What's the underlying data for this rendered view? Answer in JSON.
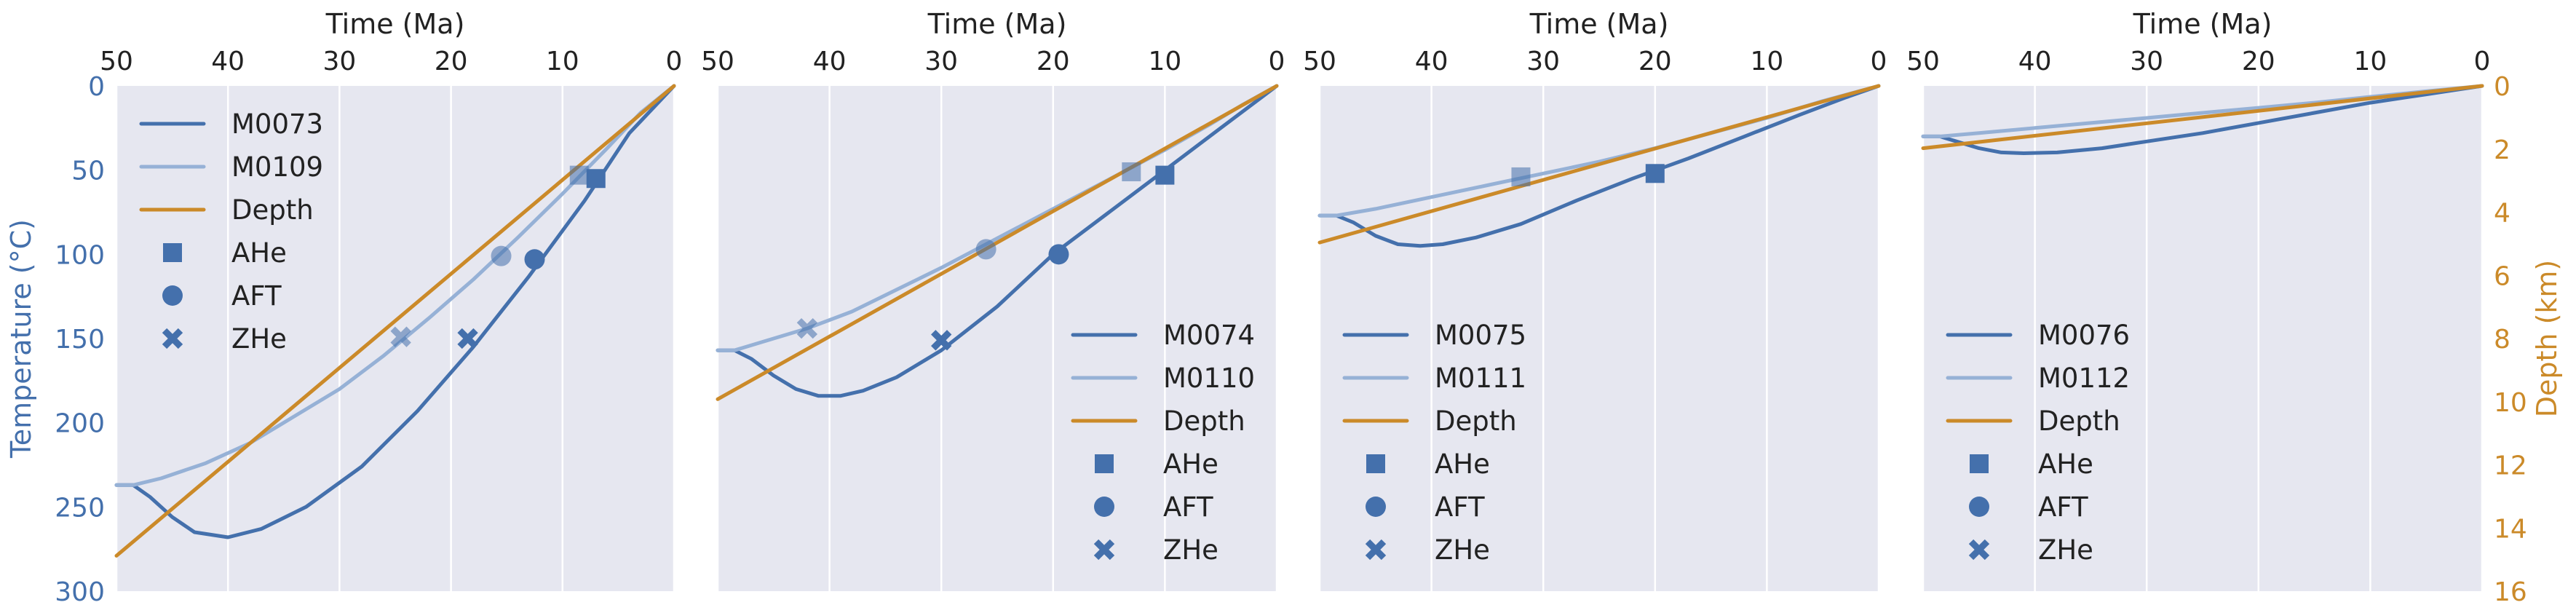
{
  "colors": {
    "axes_bg": "#e6e7f0",
    "grid": "#ffffff",
    "dark_blue": "#4470ac",
    "light_blue": "#96b1d6",
    "depth": "#cb8a29",
    "text": "#222222"
  },
  "chart_data": [
    {
      "type": "line",
      "xlabel": "Time (Ma)",
      "ylabel": "Temperature (°C)",
      "xlim": [
        50,
        0
      ],
      "ylim": [
        300,
        0
      ],
      "x_ticks": [
        50,
        40,
        30,
        20,
        10,
        0
      ],
      "y_ticks": [
        0,
        50,
        100,
        150,
        200,
        250,
        300
      ],
      "y2label": "",
      "y2_ticks": [],
      "legend_loc": "upper-left",
      "series": [
        {
          "name": "M0073",
          "style": "dark",
          "x": [
            50,
            48.5,
            47,
            45,
            43,
            40,
            37,
            33,
            28,
            23,
            18,
            13,
            8,
            4,
            0
          ],
          "y": [
            237,
            237,
            244,
            256,
            265,
            268,
            263,
            250,
            226,
            193,
            155,
            113,
            68,
            28,
            0
          ]
        },
        {
          "name": "M0109",
          "style": "light",
          "x": [
            50,
            48.5,
            46,
            42,
            38,
            34,
            30,
            26,
            22,
            18,
            14,
            10,
            6,
            3,
            0
          ],
          "y": [
            237,
            237,
            233,
            224,
            212,
            196,
            180,
            160,
            138,
            115,
            90,
            64,
            37,
            16,
            0
          ]
        },
        {
          "name": "Depth",
          "style": "depth",
          "x": [
            50,
            0
          ],
          "y": [
            279,
            0
          ]
        }
      ],
      "markers": [
        {
          "legend": "AHe",
          "shape": "square",
          "x": 7,
          "y": 55,
          "style": "dark"
        },
        {
          "legend": "AHe",
          "shape": "square",
          "x": 8.5,
          "y": 53,
          "style": "light"
        },
        {
          "legend": "AFT",
          "shape": "circle",
          "x": 12.5,
          "y": 103,
          "style": "dark"
        },
        {
          "legend": "AFT",
          "shape": "circle",
          "x": 15.5,
          "y": 101,
          "style": "light"
        },
        {
          "legend": "ZHe",
          "shape": "x",
          "x": 18.5,
          "y": 150,
          "style": "dark"
        },
        {
          "legend": "ZHe",
          "shape": "x",
          "x": 24.5,
          "y": 149,
          "style": "light"
        }
      ],
      "legend": [
        "M0073",
        "M0109",
        "Depth",
        "AHe",
        "AFT",
        "ZHe"
      ]
    },
    {
      "type": "line",
      "xlabel": "Time (Ma)",
      "ylabel": "",
      "xlim": [
        50,
        0
      ],
      "ylim": [
        300,
        0
      ],
      "x_ticks": [
        50,
        40,
        30,
        20,
        10,
        0
      ],
      "y_ticks": [],
      "y2label": "",
      "y2_ticks": [],
      "legend_loc": "lower-right",
      "series": [
        {
          "name": "M0074",
          "style": "dark",
          "x": [
            50,
            48.5,
            47,
            45,
            43,
            41,
            39,
            37,
            34,
            30,
            25,
            20,
            15,
            10,
            5,
            0
          ],
          "y": [
            157,
            157,
            162,
            172,
            180,
            184,
            184,
            181,
            173,
            157,
            131,
            100,
            75,
            50,
            25,
            0
          ]
        },
        {
          "name": "M0110",
          "style": "light",
          "x": [
            50,
            48.5,
            46,
            42,
            38,
            34,
            30,
            26,
            22,
            18,
            14,
            10,
            6,
            3,
            0
          ],
          "y": [
            157,
            157,
            152,
            144,
            134,
            121,
            108,
            94,
            80,
            66,
            52,
            38,
            23,
            11,
            0
          ]
        },
        {
          "name": "Depth",
          "style": "depth",
          "x": [
            50,
            0
          ],
          "y": [
            186,
            0
          ]
        }
      ],
      "markers": [
        {
          "legend": "AHe",
          "shape": "square",
          "x": 10,
          "y": 53,
          "style": "dark"
        },
        {
          "legend": "AHe",
          "shape": "square",
          "x": 13,
          "y": 51,
          "style": "light"
        },
        {
          "legend": "AFT",
          "shape": "circle",
          "x": 19.5,
          "y": 100,
          "style": "dark"
        },
        {
          "legend": "AFT",
          "shape": "circle",
          "x": 26,
          "y": 97,
          "style": "light"
        },
        {
          "legend": "ZHe",
          "shape": "x",
          "x": 30,
          "y": 151,
          "style": "dark"
        },
        {
          "legend": "ZHe",
          "shape": "x",
          "x": 42,
          "y": 144,
          "style": "light"
        }
      ],
      "legend": [
        "M0074",
        "M0110",
        "Depth",
        "AHe",
        "AFT",
        "ZHe"
      ]
    },
    {
      "type": "line",
      "xlabel": "Time (Ma)",
      "ylabel": "",
      "xlim": [
        50,
        0
      ],
      "ylim": [
        300,
        0
      ],
      "x_ticks": [
        50,
        40,
        30,
        20,
        10,
        0
      ],
      "y_ticks": [],
      "y2label": "",
      "y2_ticks": [],
      "legend_loc": "lower-left",
      "series": [
        {
          "name": "M0075",
          "style": "dark",
          "x": [
            50,
            48.5,
            47,
            45,
            43,
            41,
            39,
            36,
            32,
            27,
            22,
            17,
            12,
            7,
            3,
            0
          ],
          "y": [
            77,
            77,
            81,
            89,
            94,
            95,
            94,
            90,
            82,
            68,
            55,
            43,
            30,
            17,
            7,
            0
          ]
        },
        {
          "name": "M0111",
          "style": "light",
          "x": [
            50,
            48.5,
            45,
            40,
            35,
            30,
            25,
            20,
            15,
            10,
            5,
            0
          ],
          "y": [
            77,
            77,
            73,
            66,
            59,
            52,
            45,
            37,
            28,
            19,
            9,
            0
          ]
        },
        {
          "name": "Depth",
          "style": "depth",
          "x": [
            50,
            0
          ],
          "y": [
            93,
            0
          ]
        }
      ],
      "markers": [
        {
          "legend": "AHe",
          "shape": "square",
          "x": 20,
          "y": 52,
          "style": "dark"
        },
        {
          "legend": "AHe",
          "shape": "square",
          "x": 32,
          "y": 54,
          "style": "light"
        }
      ],
      "legend": [
        "M0075",
        "M0111",
        "Depth",
        "AHe",
        "AFT",
        "ZHe"
      ]
    },
    {
      "type": "line",
      "xlabel": "Time (Ma)",
      "ylabel": "",
      "xlim": [
        50,
        0
      ],
      "ylim": [
        300,
        0
      ],
      "x_ticks": [
        50,
        40,
        30,
        20,
        10,
        0
      ],
      "y_ticks": [],
      "y2label": "Depth (km)",
      "y2lim": [
        16,
        0
      ],
      "y2_ticks": [
        0,
        2,
        4,
        6,
        8,
        10,
        12,
        14,
        16
      ],
      "legend_loc": "lower-left",
      "series": [
        {
          "name": "M0076",
          "style": "dark",
          "x": [
            50,
            48.5,
            47,
            45,
            43,
            41,
            38,
            34,
            30,
            25,
            20,
            15,
            10,
            5,
            0
          ],
          "y": [
            30,
            30,
            33,
            37,
            39.5,
            40,
            39.5,
            37,
            33,
            28,
            22,
            16,
            10,
            5,
            0
          ]
        },
        {
          "name": "M0112",
          "style": "light",
          "x": [
            50,
            48.5,
            45,
            40,
            35,
            30,
            25,
            20,
            15,
            10,
            5,
            0
          ],
          "y": [
            30,
            30,
            28,
            25,
            22,
            19,
            16,
            13,
            10,
            6.5,
            3.2,
            0
          ]
        },
        {
          "name": "Depth",
          "style": "depth",
          "x": [
            50,
            0
          ],
          "y": [
            37,
            0
          ]
        }
      ],
      "markers": [],
      "legend": [
        "M0076",
        "M0112",
        "Depth",
        "AHe",
        "AFT",
        "ZHe"
      ]
    }
  ]
}
